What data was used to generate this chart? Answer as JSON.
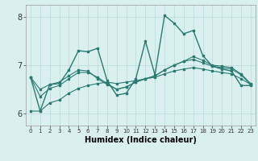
{
  "xlabel": "Humidex (Indice chaleur)",
  "ylabel": "",
  "xlim": [
    -0.5,
    23.5
  ],
  "ylim": [
    5.75,
    8.25
  ],
  "yticks": [
    6,
    7,
    8
  ],
  "xticks": [
    0,
    1,
    2,
    3,
    4,
    5,
    6,
    7,
    8,
    9,
    10,
    11,
    12,
    13,
    14,
    15,
    16,
    17,
    18,
    19,
    20,
    21,
    22,
    23
  ],
  "bg_color": "#d9f0ee",
  "line_color": "#2b7a72",
  "grid_color": "#b8dbd8",
  "lines": [
    {
      "x": [
        0,
        1,
        2,
        3,
        4,
        5,
        6,
        7,
        8,
        9,
        10,
        11,
        12,
        13,
        14,
        15,
        16,
        17,
        18,
        19,
        20,
        21,
        22,
        23
      ],
      "y": [
        6.75,
        6.05,
        6.6,
        6.62,
        6.9,
        7.3,
        7.28,
        7.35,
        6.68,
        6.38,
        6.42,
        6.72,
        7.5,
        6.8,
        8.03,
        7.87,
        7.65,
        7.72,
        7.2,
        6.98,
        6.92,
        6.88,
        6.58,
        6.58
      ]
    },
    {
      "x": [
        0,
        1,
        2,
        3,
        4,
        5,
        6,
        7,
        8,
        9,
        10,
        11,
        12,
        13,
        14,
        15,
        16,
        17,
        18,
        19,
        20,
        21,
        22,
        23
      ],
      "y": [
        6.05,
        6.05,
        6.22,
        6.28,
        6.42,
        6.52,
        6.58,
        6.62,
        6.65,
        6.62,
        6.65,
        6.68,
        6.72,
        6.75,
        6.82,
        6.88,
        6.92,
        6.95,
        6.92,
        6.88,
        6.85,
        6.82,
        6.72,
        6.6
      ]
    },
    {
      "x": [
        0,
        1,
        2,
        3,
        4,
        5,
        6,
        7,
        8,
        9,
        10,
        11,
        12,
        13,
        14,
        15,
        16,
        17,
        18,
        19,
        20,
        21,
        22,
        23
      ],
      "y": [
        6.75,
        6.35,
        6.52,
        6.58,
        6.72,
        6.85,
        6.85,
        6.75,
        6.62,
        6.5,
        6.55,
        6.65,
        6.72,
        6.78,
        6.9,
        7.0,
        7.08,
        7.12,
        7.05,
        6.98,
        6.95,
        6.92,
        6.8,
        6.6
      ]
    },
    {
      "x": [
        0,
        1,
        2,
        3,
        4,
        5,
        6,
        7,
        8,
        9,
        10,
        11,
        12,
        13,
        14,
        15,
        16,
        17,
        18,
        19,
        20,
        21,
        22,
        23
      ],
      "y": [
        6.75,
        6.5,
        6.6,
        6.65,
        6.78,
        6.9,
        6.88,
        6.72,
        6.6,
        6.5,
        6.55,
        6.65,
        6.72,
        6.78,
        6.9,
        7.0,
        7.08,
        7.18,
        7.1,
        7.0,
        6.98,
        6.95,
        6.82,
        6.62
      ]
    }
  ]
}
